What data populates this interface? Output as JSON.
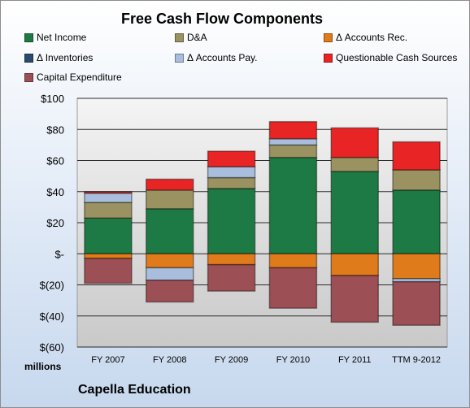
{
  "title": "Free Cash Flow Components",
  "units_label": "millions",
  "company": "Capella Education",
  "colors": {
    "Net Income": "#1e7a44",
    "D&A": "#9a9260",
    "Δ Accounts Rec.": "#e07b1c",
    "Δ Inventories": "#2c4a6e",
    "Δ Accounts Pay.": "#a8bedc",
    "Questionable Cash Sources": "#e82424",
    "Capital Expenditure": "#9c4f55"
  },
  "chart_data": {
    "type": "bar",
    "stacked": true,
    "categories": [
      "FY 2007",
      "FY 2008",
      "FY 2009",
      "FY 2010",
      "FY 2011",
      "TTM 9-2012"
    ],
    "series": [
      {
        "name": "Net Income",
        "values": [
          23,
          29,
          42,
          62,
          53,
          41
        ]
      },
      {
        "name": "D&A",
        "values": [
          10,
          12,
          7,
          8,
          9,
          13
        ]
      },
      {
        "name": "Δ Accounts Rec.",
        "values": [
          -3,
          -9,
          -7,
          -9,
          -14,
          -16
        ]
      },
      {
        "name": "Δ Inventories",
        "values": [
          0,
          0,
          0,
          0,
          0,
          0
        ]
      },
      {
        "name": "Δ Accounts Pay.",
        "values": [
          6,
          -8,
          7,
          4,
          0,
          -2
        ]
      },
      {
        "name": "Questionable Cash Sources",
        "values": [
          1,
          7,
          10,
          11,
          19,
          18
        ]
      },
      {
        "name": "Capital Expenditure",
        "values": [
          -16,
          -14,
          -17,
          -26,
          -30,
          -28
        ]
      }
    ],
    "ylim": [
      -60,
      100
    ],
    "yticks": [
      100,
      80,
      60,
      40,
      20,
      0,
      -20,
      -40,
      -60
    ],
    "ytick_labels": [
      "$100",
      "$80",
      "$60",
      "$40",
      "$20",
      "$-",
      "$(20)",
      "$(40)",
      "$(60)"
    ],
    "grid": true,
    "legend_position": "top"
  }
}
